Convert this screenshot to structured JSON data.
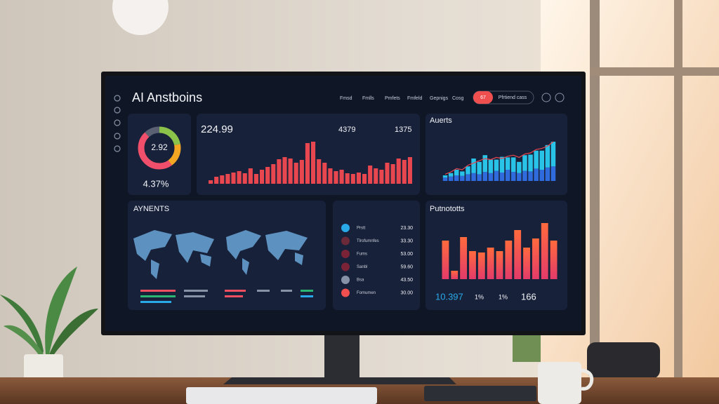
{
  "header": {
    "title": "AI Anstboins",
    "nav": [
      "Fmsd",
      "Fmlls",
      "Pmfets",
      "Fmfeld",
      "Gepnigs",
      "Cosg"
    ],
    "button": "67",
    "tab": "Pfrtiend cass"
  },
  "kpi": {
    "value": "2.92",
    "change": "4.37%",
    "segments": [
      {
        "color": "#8bc34a",
        "value": 22
      },
      {
        "color": "#f5a623",
        "value": 18
      },
      {
        "color": "#ef4f6a",
        "value": 48
      },
      {
        "color": "#5a6173",
        "value": 12
      }
    ]
  },
  "trend": {
    "title": "224.99",
    "stats": [
      "4379",
      "1375"
    ],
    "color": "#e8474f",
    "values": [
      5,
      10,
      12,
      14,
      16,
      18,
      15,
      22,
      14,
      20,
      24,
      28,
      35,
      38,
      36,
      30,
      34,
      58,
      60,
      35,
      30,
      22,
      18,
      20,
      15,
      14,
      16,
      14,
      26,
      22,
      20,
      30,
      28,
      36,
      34,
      38
    ]
  },
  "alerts": {
    "title": "Auerts",
    "series": [
      {
        "color": "#2f6bdc",
        "values": [
          6,
          8,
          10,
          9,
          12,
          14,
          12,
          16,
          14,
          18,
          15,
          20,
          16,
          14,
          18,
          17,
          22,
          20,
          24,
          26
        ]
      },
      {
        "color": "#29c3e8",
        "values": [
          4,
          6,
          10,
          8,
          14,
          26,
          22,
          30,
          24,
          20,
          28,
          22,
          26,
          20,
          28,
          30,
          32,
          34,
          40,
          44
        ]
      }
    ],
    "line": {
      "color": "#e8474f",
      "values": [
        12,
        16,
        22,
        20,
        28,
        32,
        36,
        40,
        38,
        42,
        40,
        44,
        46,
        42,
        48,
        50,
        56,
        58,
        62,
        70
      ]
    }
  },
  "payments": {
    "title": "AYNENTS"
  },
  "list": {
    "rows": [
      {
        "label": "Prstt",
        "value": "23.30"
      },
      {
        "label": "Tlrofumnfes",
        "value": "33.30"
      },
      {
        "label": "Fums",
        "value": "53.00"
      },
      {
        "label": "Sanbl",
        "value": "59.60"
      },
      {
        "label": "Bsa",
        "value": "43.50"
      },
      {
        "label": "Fomumen",
        "value": "30.00"
      }
    ]
  },
  "products": {
    "title": "Putnototts",
    "values": [
      55,
      12,
      60,
      40,
      38,
      45,
      40,
      55,
      70,
      45,
      58,
      80,
      55
    ],
    "footer": [
      "10.397",
      "1%",
      "1%",
      "166"
    ]
  }
}
